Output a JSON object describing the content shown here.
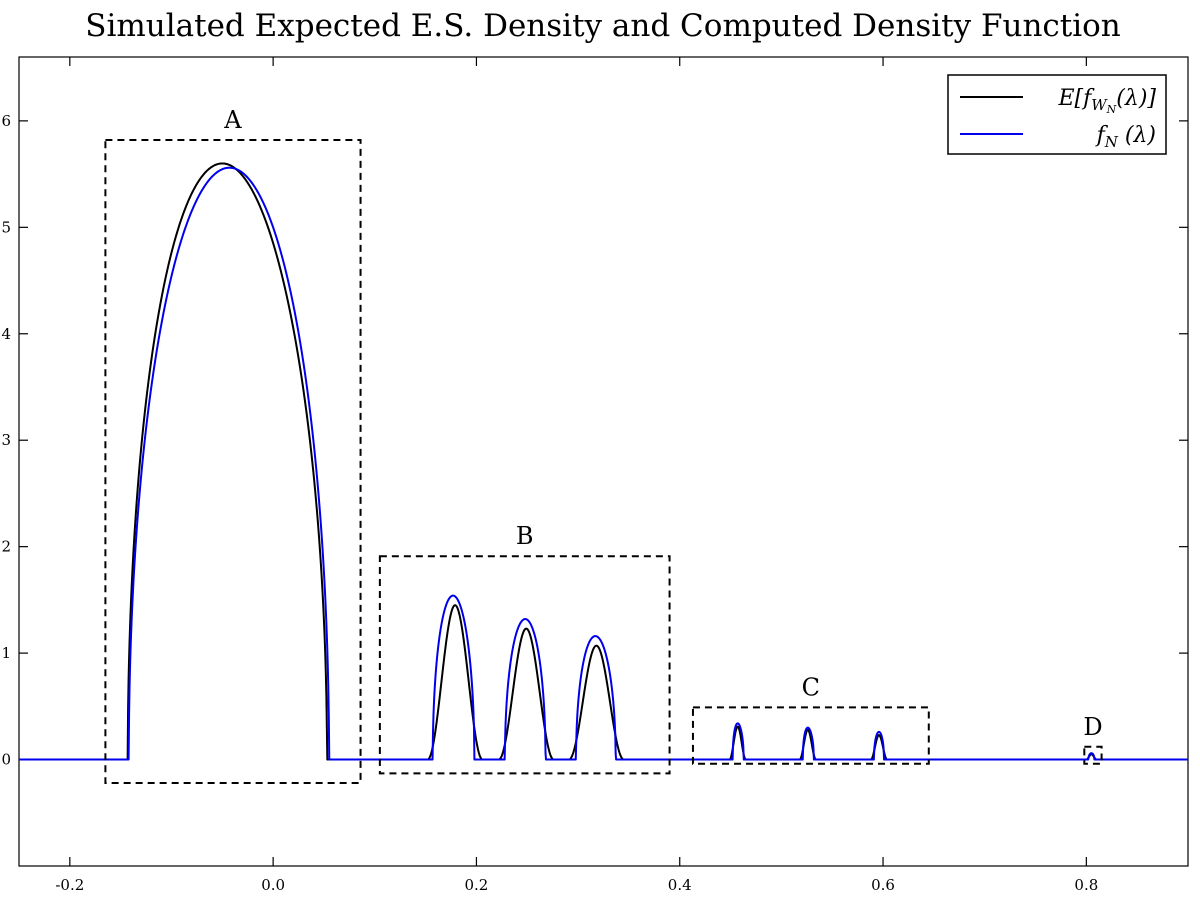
{
  "chart_data": {
    "type": "line",
    "title": "Simulated Expected E.S. Density and Computed Density Function",
    "xlabel": "",
    "ylabel": "",
    "xlim": [
      -0.25,
      0.9
    ],
    "ylim": [
      -1.0,
      6.6
    ],
    "x_ticks": [
      -0.2,
      0.0,
      0.2,
      0.4,
      0.6,
      0.8
    ],
    "x_tick_labels": [
      "-0.2",
      "0.0",
      "0.2",
      "0.4",
      "0.6",
      "0.8"
    ],
    "y_ticks": [
      0,
      1,
      2,
      3,
      4,
      5,
      6
    ],
    "y_tick_labels": [
      "0",
      "1",
      "2",
      "3",
      "4",
      "5",
      "6"
    ],
    "grid": false,
    "legend_position": "top-right",
    "colors": {
      "series_0": "#000000",
      "series_1": "#0000ee"
    },
    "series": [
      {
        "name": "E[f_{W_N}(λ)]",
        "label_parts": {
          "base": "E[f",
          "sub": "W",
          "subsub": "N",
          "rest": "(λ)]"
        },
        "color": "#000000",
        "bumps": [
          {
            "left": -0.143,
            "right": 0.053,
            "peak_x": -0.05,
            "peak": 5.6,
            "smooth": false
          },
          {
            "left": 0.152,
            "right": 0.206,
            "peak_x": 0.177,
            "peak": 1.45,
            "smooth": true
          },
          {
            "left": 0.222,
            "right": 0.276,
            "peak_x": 0.249,
            "peak": 1.23,
            "smooth": true
          },
          {
            "left": 0.291,
            "right": 0.345,
            "peak_x": 0.317,
            "peak": 1.07,
            "smooth": true
          },
          {
            "left": 0.449,
            "right": 0.465,
            "peak_x": 0.457,
            "peak": 0.31,
            "smooth": true
          },
          {
            "left": 0.518,
            "right": 0.534,
            "peak_x": 0.526,
            "peak": 0.28,
            "smooth": true
          },
          {
            "left": 0.588,
            "right": 0.604,
            "peak_x": 0.596,
            "peak": 0.23,
            "smooth": true
          },
          {
            "left": 0.8,
            "right": 0.81,
            "peak_x": 0.805,
            "peak": 0.05,
            "smooth": true
          }
        ]
      },
      {
        "name": "f_N (λ)",
        "label_parts": {
          "base": "f",
          "sub": "N",
          "rest": " (λ)"
        },
        "color": "#0000ee",
        "bumps": [
          {
            "left": -0.142,
            "right": 0.055,
            "peak_x": -0.043,
            "peak": 5.56,
            "smooth": false
          },
          {
            "left": 0.157,
            "right": 0.198,
            "peak_x": 0.177,
            "peak": 1.54,
            "smooth": false
          },
          {
            "left": 0.228,
            "right": 0.268,
            "peak_x": 0.248,
            "peak": 1.32,
            "smooth": false
          },
          {
            "left": 0.298,
            "right": 0.337,
            "peak_x": 0.317,
            "peak": 1.16,
            "smooth": false
          },
          {
            "left": 0.452,
            "right": 0.463,
            "peak_x": 0.457,
            "peak": 0.34,
            "smooth": false
          },
          {
            "left": 0.521,
            "right": 0.532,
            "peak_x": 0.526,
            "peak": 0.3,
            "smooth": false
          },
          {
            "left": 0.591,
            "right": 0.601,
            "peak_x": 0.596,
            "peak": 0.26,
            "smooth": false
          },
          {
            "left": 0.802,
            "right": 0.808,
            "peak_x": 0.805,
            "peak": 0.06,
            "smooth": false
          }
        ]
      }
    ],
    "regions": [
      {
        "label": "A",
        "x0": -0.165,
        "x1": 0.086,
        "y0": -0.22,
        "y1": 5.82
      },
      {
        "label": "B",
        "x0": 0.105,
        "x1": 0.39,
        "y0": -0.13,
        "y1": 1.91
      },
      {
        "label": "C",
        "x0": 0.413,
        "x1": 0.645,
        "y0": -0.04,
        "y1": 0.49
      },
      {
        "label": "D",
        "x0": 0.798,
        "x1": 0.815,
        "y0": -0.04,
        "y1": 0.12
      }
    ]
  }
}
